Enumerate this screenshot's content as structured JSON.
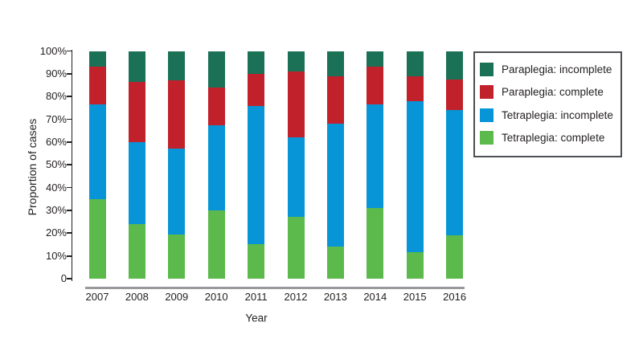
{
  "chart_data": {
    "type": "bar",
    "subtype": "stacked-percent",
    "title": "",
    "xlabel": "Year",
    "ylabel": "Proportion of cases",
    "categories": [
      "2007",
      "2008",
      "2009",
      "2010",
      "2011",
      "2012",
      "2013",
      "2014",
      "2015",
      "2016"
    ],
    "series": [
      {
        "name": "Tetraplegia: complete",
        "color": "#5CB94B",
        "values": [
          35,
          24,
          19.5,
          30,
          15,
          27,
          14,
          31,
          11.5,
          19
        ]
      },
      {
        "name": "Tetraplegia: incomplete",
        "color": "#0895D8",
        "values": [
          41.5,
          36,
          37.5,
          37.5,
          61,
          35,
          54,
          45.5,
          66.5,
          55
        ]
      },
      {
        "name": "Paraplegia: complete",
        "color": "#C1212B",
        "values": [
          16.5,
          26.5,
          30,
          16.5,
          14,
          29,
          21,
          16.5,
          11,
          13.5
        ]
      },
      {
        "name": "Paraplegia: incomplete",
        "color": "#1B7156",
        "values": [
          7,
          13.5,
          13,
          16,
          10,
          9,
          11,
          7,
          11,
          12.5
        ]
      }
    ],
    "stack_order": "bottom-to-top",
    "y_ticks": [
      "0",
      "10%",
      "20%",
      "30%",
      "40%",
      "50%",
      "60%",
      "70%",
      "80%",
      "90%",
      "100%"
    ],
    "ylim": [
      0,
      100
    ],
    "grid": false,
    "legend_position": "right",
    "legend_items_top_to_bottom": [
      "Paraplegia: incomplete",
      "Paraplegia: complete",
      "Tetraplegia: incomplete",
      "Tetraplegia: complete"
    ]
  },
  "colors": {
    "axis": "#231F20",
    "text": "#231F20",
    "baseline": "#97999C",
    "legend_border": "#4E4F53",
    "background": "#FFFFFF"
  }
}
